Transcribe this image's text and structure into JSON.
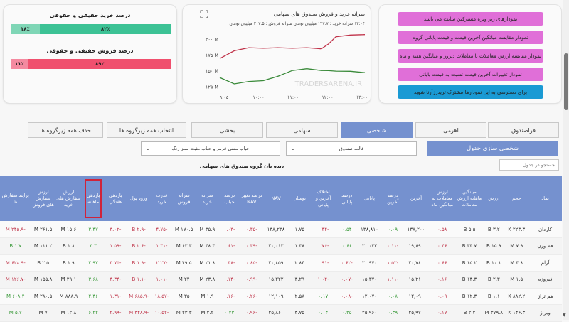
{
  "percent_card": {
    "buy_title": "درصد خرید حقیقی و حقوقی",
    "buy_legal": "۱۸٪",
    "buy_real": "۸۲٪",
    "buy_legal_pct": 18,
    "sell_title": "درصد فروش حقیقی و حقوقی",
    "sell_legal": "۱۱٪",
    "sell_real": "۸۹٪",
    "sell_legal_pct": 11,
    "colors": {
      "buy_dark": "#3cc295",
      "buy_light": "#7fd6b6",
      "sell_dark": "#f0506e",
      "sell_light": "#f48aa0"
    }
  },
  "chart_card": {
    "title": "سرانه خرید و فروش صندوق های سهامی",
    "subtitle": "۱۳:۰۴ سرانه خرید : ۱۴۷.۷ میلیون تومان سرانه فروش : ۲۰۷.۵ میلیون تومان",
    "watermark": "TRADERSARENA.IR",
    "expand_icon": "expand-icon"
  },
  "chart_data": {
    "type": "line",
    "title": "سرانه خرید و فروش صندوق های سهامی",
    "xlabel": "",
    "ylabel": "",
    "x_ticks": [
      "۹:۰۵",
      "۱۰:۰۰",
      "۱۱:۰۰",
      "۱۲:۰۰",
      "۱۳:۰۰"
    ],
    "y_ticks": [
      "۱۲۵ M",
      "۱۵۰ M",
      "۱۷۵ M",
      "۲۰۰ M"
    ],
    "ylim": [
      120,
      215
    ],
    "x": [
      0,
      0.1,
      0.2,
      0.3,
      0.4,
      0.5,
      0.6,
      0.7,
      0.75,
      0.8,
      0.9,
      1.0
    ],
    "series": [
      {
        "name": "سرانه فروش",
        "color": "#c0334a",
        "values": [
          170,
          183,
          186,
          187,
          186,
          187,
          186,
          186,
          192,
          205,
          206,
          207.5
        ]
      },
      {
        "name": "سرانه خرید",
        "color": "#3a8a3a",
        "values": [
          140,
          131,
          133,
          136,
          141,
          152,
          153,
          152,
          150,
          151,
          149,
          147.7
        ]
      }
    ],
    "grid": false,
    "legend": "none"
  },
  "links_card": {
    "items": [
      "نمودارهای زیر ویژه مشترکین سایت می باشد",
      "نمودار مقایسه میانگین آخرین قیمت و قیمت پایانی گروه",
      "نمودار مقایسه ارزش معاملات با معاملات دیروز و میانگین هفته و ماه",
      "نمودار تغییرات آخرین قیمت نسبت به قیمت پایانی",
      "برای دسترسی به این نمودارها مشترک تریدرزآرنا شوید"
    ]
  },
  "tabs": [
    {
      "label": "فراصندوق",
      "active": false
    },
    {
      "label": "اهرمی",
      "active": false
    },
    {
      "label": "شاخصی",
      "active": true
    },
    {
      "label": "سهامی",
      "active": false
    },
    {
      "label": "بخشی",
      "active": false
    },
    {
      "label": "انتخاب همه زیرگروه ها",
      "active": false
    },
    {
      "label": "حذف همه زیرگروه ها",
      "active": false
    }
  ],
  "controls": {
    "customize_label": "شخصی سازی جدول",
    "fund_type_select": "قالب صندوق",
    "bubble_select": "حباب منفی قرمز و حباب مثبت سبز رنگ",
    "search_placeholder": "جستجو در جدول",
    "table_title": "دیده بان گروه صندوق های سهامی"
  },
  "table": {
    "headers": [
      "نماد",
      "حجم",
      "ارزش",
      "میانگین ماهانه ارزش معاملات",
      "ارزش معاملات به میانگین ماه",
      "آخرین",
      "درصد آخرین",
      "پایانی",
      "درصد پایانی",
      "اختلاف آخرین و پایانی",
      "نوسان",
      "NAV",
      "درصد تغییر NAV",
      "درصد حباب",
      "سرانه خرید",
      "سرانه فروش",
      "قدرت خرید",
      "ورود پول",
      "بازدهی هفتگی",
      "بازدهی ماهانه",
      "ارزش سفارش های خرید",
      "ارزش سفارش های فروش",
      "برایند سفارش ها"
    ],
    "rows": [
      [
        "کاردان",
        "۲۲۳.۳ K",
        "۳.۲ B",
        "۵.۵ B",
        "۰.۵۸",
        "۱۳۸,۲۰۰",
        "۰.۰۹",
        "۱۳۸,۸۱۰",
        "۰.۵۴",
        "-۰.۴۴",
        "۱.۷۵",
        "۱۳۸,۲۳۸",
        "-۰.۳۵",
        "-۰.۰۳",
        "۳۵.۹ M",
        "۱۷۰.۵ M",
        "-۴.۷۵",
        "-۲.۹ B",
        "-۳.۰۲",
        "۳.۴۷",
        "۱۵.۶ M",
        "۲۶۱.۵ M",
        "-۲۴۵.۹ M"
      ],
      [
        "هم وزن",
        "۷.۹ M",
        "۱۵.۹ B",
        "۳۴.۷ B",
        "۰.۴۶",
        "۱۹,۸۹۰",
        "-۰.۱۱",
        "۲۰,۰۴۳",
        "۰.۶۶",
        "-۰.۷۶",
        "۱.۴۸",
        "۲۰,۰۱۳",
        "-۰.۳۹",
        "-۰.۶۱",
        "۴۸.۴ M",
        "۶۳.۳ M",
        "-۱.۳۱",
        "-۲.۶ B",
        "-۱.۵۹",
        "۳.۳",
        "۱.۸ B",
        "۱۱۱.۲ M",
        "۱.۷ B"
      ],
      [
        "آرام",
        "۴.۸ M",
        "۱۰.۱ B",
        "۱۵.۲ B",
        "۰.۶۶",
        "۲۰,۷۸۰",
        "-۱.۵۲",
        "۲۰,۹۷۰",
        "-۰.۶۲",
        "-۰.۹۱",
        "۲.۸۴",
        "۲۰,۸۵۹",
        "-۰.۸۵",
        "-۰.۳۸",
        "۲۱.۸ M",
        "۴۹.۵ M",
        "-۲.۲۷",
        "-۱.۹ B",
        "-۳.۷۵",
        "۲.۹۷",
        "۱.۹ B",
        "۲.۵ B",
        "-۶۲۸.۹ M"
      ],
      [
        "فیروزه",
        "۱.۵ M",
        "۲.۳ B",
        "۱۴.۳ B",
        "۰.۱۶",
        "۱۵,۲۱۰",
        "-۱.۱۱",
        "۱۵,۳۷۰",
        "-۰.۰۷",
        "-۱.۰۴",
        "۳.۲۹",
        "۱۵,۲۲۲",
        "-۰.۹۹",
        "-۰.۱۴",
        "۲۳.۸ M",
        "۲۴ M",
        "-۱.۰۱",
        "-۱.۱ B",
        "-۴.۳۴",
        "۳.۶۸",
        "۲۹.۱ M",
        "۱۵۵.۸ M",
        "-۱۲۶.۷ M"
      ],
      [
        "هم تراز",
        "۸۸۲.۲ K",
        "۱.۱ B",
        "۱۲.۳ B",
        "۰.۰۹",
        "۱۲,۰۹۰",
        "۰.۰۸",
        "۱۲,۰۷۰",
        "-۰.۰۸",
        "۰.۱۷",
        "۲.۵۸",
        "۱۲,۱۰۹",
        "-۰.۲۶",
        "-۰.۱۶",
        "۱.۹ M",
        "۳۵ M",
        "-۱۸.۵۷",
        "-۶۸۵.۹ M",
        "-۱.۳۱",
        "۲.۴۶",
        "۸۸۸.۹ M",
        "۲۸۰.۵ M",
        "۶۰۸.۴ M"
      ],
      [
        "ویراز",
        "۱۴۶.۳ K",
        "۳۷۹.۸ M",
        "۲.۲ B",
        "۰.۱۷",
        "۲۵,۹۷۰",
        "۰.۳۹",
        "۲۵,۹۶۰",
        "۰.۳۵",
        "۰.۰۴",
        "۳.۷۵",
        "۲۵,۸۶۰",
        "-۰.۹۶",
        "۰.۴۳",
        "۲.۲ M",
        "۲۳.۳ M",
        "-۱۰.۵۲",
        "-۳۴۸.۹ M",
        "-۲.۹۹",
        "۶.۲۲",
        "۱۲.۸ M",
        "۷ M",
        "۵.۷ M"
      ]
    ],
    "highlighted_header": "بازدهی ماهانه"
  }
}
